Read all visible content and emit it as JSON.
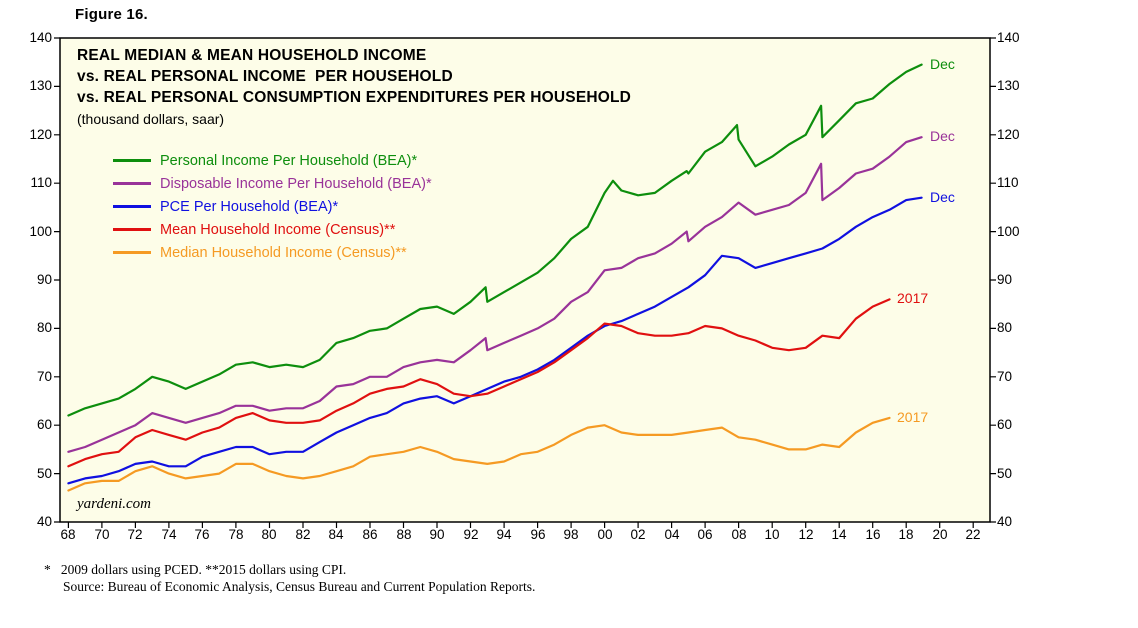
{
  "figure_label": "Figure 16.",
  "watermark": "yardeni.com",
  "footnotes": {
    "line1": "*   2009 dollars using PCED. **2015 dollars using CPI.",
    "line2": "Source: Bureau of Economic Analysis, Census Bureau and Current Population Reports."
  },
  "colors": {
    "plot_bg": "#FDFDE8",
    "frame": "#000000",
    "text": "#000000"
  },
  "chart_data": {
    "type": "line",
    "title_lines": [
      "REAL MEDIAN & MEAN HOUSEHOLD INCOME",
      "vs. REAL PERSONAL INCOME  PER HOUSEHOLD",
      "vs. REAL PERSONAL CONSUMPTION EXPENDITURES PER HOUSEHOLD"
    ],
    "subtitle": "(thousand dollars, saar)",
    "xlabel": "",
    "ylabel": "thousand dollars, saar",
    "xlim": [
      1967.5,
      2023
    ],
    "ylim": [
      40,
      140
    ],
    "grid": false,
    "legend_position": "top-left",
    "y_ticks": [
      40,
      50,
      60,
      70,
      80,
      90,
      100,
      110,
      120,
      130,
      140
    ],
    "x_tick_years": [
      1968,
      1970,
      1972,
      1974,
      1976,
      1978,
      1980,
      1982,
      1984,
      1986,
      1988,
      1990,
      1992,
      1994,
      1996,
      1998,
      2000,
      2002,
      2004,
      2006,
      2008,
      2010,
      2012,
      2014,
      2016,
      2018,
      2020,
      2022
    ],
    "x_tick_labels": [
      "68",
      "70",
      "72",
      "74",
      "76",
      "78",
      "80",
      "82",
      "84",
      "86",
      "88",
      "90",
      "92",
      "94",
      "96",
      "98",
      "00",
      "02",
      "04",
      "06",
      "08",
      "10",
      "12",
      "14",
      "16",
      "18",
      "20",
      "22"
    ],
    "series": [
      {
        "id": "personal-income",
        "name": "Personal Income Per Household (BEA)*",
        "color": "#0D8E0D",
        "end_label": "Dec",
        "points": [
          [
            1968,
            62
          ],
          [
            1969,
            63.5
          ],
          [
            1970,
            64.5
          ],
          [
            1971,
            65.5
          ],
          [
            1972,
            67.5
          ],
          [
            1973,
            70
          ],
          [
            1974,
            69
          ],
          [
            1975,
            67.5
          ],
          [
            1976,
            69
          ],
          [
            1977,
            70.5
          ],
          [
            1978,
            72.5
          ],
          [
            1979,
            73
          ],
          [
            1980,
            72
          ],
          [
            1981,
            72.5
          ],
          [
            1982,
            72
          ],
          [
            1983,
            73.5
          ],
          [
            1984,
            77
          ],
          [
            1985,
            78
          ],
          [
            1986,
            79.5
          ],
          [
            1987,
            80
          ],
          [
            1988,
            82
          ],
          [
            1989,
            84
          ],
          [
            1990,
            84.5
          ],
          [
            1991,
            83
          ],
          [
            1992,
            85.5
          ],
          [
            1992.9,
            88.5
          ],
          [
            1993,
            85.5
          ],
          [
            1994,
            87.5
          ],
          [
            1995,
            89.5
          ],
          [
            1996,
            91.5
          ],
          [
            1997,
            94.5
          ],
          [
            1998,
            98.5
          ],
          [
            1999,
            101
          ],
          [
            2000,
            108
          ],
          [
            2000.5,
            110.5
          ],
          [
            2001,
            108.5
          ],
          [
            2002,
            107.5
          ],
          [
            2003,
            108
          ],
          [
            2004,
            110.5
          ],
          [
            2004.9,
            112.5
          ],
          [
            2005,
            112
          ],
          [
            2006,
            116.5
          ],
          [
            2007,
            118.5
          ],
          [
            2007.9,
            122
          ],
          [
            2008,
            119
          ],
          [
            2009,
            113.5
          ],
          [
            2010,
            115.5
          ],
          [
            2011,
            118
          ],
          [
            2012,
            120
          ],
          [
            2012.92,
            126
          ],
          [
            2013,
            119.5
          ],
          [
            2014,
            123
          ],
          [
            2015,
            126.5
          ],
          [
            2016,
            127.5
          ],
          [
            2017,
            130.5
          ],
          [
            2018,
            133
          ],
          [
            2018.92,
            134.5
          ]
        ]
      },
      {
        "id": "disposable-income",
        "name": "Disposable Income Per Household (BEA)*",
        "color": "#993399",
        "end_label": "Dec",
        "points": [
          [
            1968,
            54.5
          ],
          [
            1969,
            55.5
          ],
          [
            1970,
            57
          ],
          [
            1971,
            58.5
          ],
          [
            1972,
            60
          ],
          [
            1973,
            62.5
          ],
          [
            1974,
            61.5
          ],
          [
            1975,
            60.5
          ],
          [
            1976,
            61.5
          ],
          [
            1977,
            62.5
          ],
          [
            1978,
            64
          ],
          [
            1979,
            64
          ],
          [
            1980,
            63
          ],
          [
            1981,
            63.5
          ],
          [
            1982,
            63.5
          ],
          [
            1983,
            65
          ],
          [
            1984,
            68
          ],
          [
            1985,
            68.5
          ],
          [
            1986,
            70
          ],
          [
            1987,
            70
          ],
          [
            1988,
            72
          ],
          [
            1989,
            73
          ],
          [
            1990,
            73.5
          ],
          [
            1991,
            73
          ],
          [
            1992,
            75.5
          ],
          [
            1992.9,
            78
          ],
          [
            1993,
            75.5
          ],
          [
            1994,
            77
          ],
          [
            1995,
            78.5
          ],
          [
            1996,
            80
          ],
          [
            1997,
            82
          ],
          [
            1998,
            85.5
          ],
          [
            1999,
            87.5
          ],
          [
            2000,
            92
          ],
          [
            2001,
            92.5
          ],
          [
            2002,
            94.5
          ],
          [
            2003,
            95.5
          ],
          [
            2004,
            97.5
          ],
          [
            2004.9,
            100
          ],
          [
            2005,
            98
          ],
          [
            2006,
            101
          ],
          [
            2007,
            103
          ],
          [
            2008,
            106
          ],
          [
            2009,
            103.5
          ],
          [
            2010,
            104.5
          ],
          [
            2011,
            105.5
          ],
          [
            2012,
            108
          ],
          [
            2012.92,
            114
          ],
          [
            2013,
            106.5
          ],
          [
            2014,
            109
          ],
          [
            2015,
            112
          ],
          [
            2016,
            113
          ],
          [
            2017,
            115.5
          ],
          [
            2018,
            118.5
          ],
          [
            2018.92,
            119.5
          ]
        ]
      },
      {
        "id": "pce",
        "name": "PCE Per Household (BEA)*",
        "color": "#1010E0",
        "end_label": "Dec",
        "points": [
          [
            1968,
            48
          ],
          [
            1969,
            49
          ],
          [
            1970,
            49.5
          ],
          [
            1971,
            50.5
          ],
          [
            1972,
            52
          ],
          [
            1973,
            52.5
          ],
          [
            1974,
            51.5
          ],
          [
            1975,
            51.5
          ],
          [
            1976,
            53.5
          ],
          [
            1977,
            54.5
          ],
          [
            1978,
            55.5
          ],
          [
            1979,
            55.5
          ],
          [
            1980,
            54
          ],
          [
            1981,
            54.5
          ],
          [
            1982,
            54.5
          ],
          [
            1983,
            56.5
          ],
          [
            1984,
            58.5
          ],
          [
            1985,
            60
          ],
          [
            1986,
            61.5
          ],
          [
            1987,
            62.5
          ],
          [
            1988,
            64.5
          ],
          [
            1989,
            65.5
          ],
          [
            1990,
            66
          ],
          [
            1991,
            64.5
          ],
          [
            1992,
            66
          ],
          [
            1993,
            67.5
          ],
          [
            1994,
            69
          ],
          [
            1995,
            70
          ],
          [
            1996,
            71.5
          ],
          [
            1997,
            73.5
          ],
          [
            1998,
            76
          ],
          [
            1999,
            78.5
          ],
          [
            2000,
            80.5
          ],
          [
            2001,
            81.5
          ],
          [
            2002,
            83
          ],
          [
            2003,
            84.5
          ],
          [
            2004,
            86.5
          ],
          [
            2005,
            88.5
          ],
          [
            2006,
            91
          ],
          [
            2007,
            95
          ],
          [
            2008,
            94.5
          ],
          [
            2009,
            92.5
          ],
          [
            2010,
            93.5
          ],
          [
            2011,
            94.5
          ],
          [
            2012,
            95.5
          ],
          [
            2013,
            96.5
          ],
          [
            2014,
            98.5
          ],
          [
            2015,
            101
          ],
          [
            2016,
            103
          ],
          [
            2017,
            104.5
          ],
          [
            2018,
            106.5
          ],
          [
            2018.92,
            107
          ]
        ]
      },
      {
        "id": "mean-income",
        "name": "Mean Household Income (Census)**",
        "color": "#E01010",
        "end_label": "2017",
        "points": [
          [
            1968,
            51.5
          ],
          [
            1969,
            53
          ],
          [
            1970,
            54
          ],
          [
            1971,
            54.5
          ],
          [
            1972,
            57.5
          ],
          [
            1973,
            59
          ],
          [
            1974,
            58
          ],
          [
            1975,
            57
          ],
          [
            1976,
            58.5
          ],
          [
            1977,
            59.5
          ],
          [
            1978,
            61.5
          ],
          [
            1979,
            62.5
          ],
          [
            1980,
            61
          ],
          [
            1981,
            60.5
          ],
          [
            1982,
            60.5
          ],
          [
            1983,
            61
          ],
          [
            1984,
            63
          ],
          [
            1985,
            64.5
          ],
          [
            1986,
            66.5
          ],
          [
            1987,
            67.5
          ],
          [
            1988,
            68
          ],
          [
            1989,
            69.5
          ],
          [
            1990,
            68.5
          ],
          [
            1991,
            66.5
          ],
          [
            1992,
            66
          ],
          [
            1993,
            66.5
          ],
          [
            1994,
            68
          ],
          [
            1995,
            69.5
          ],
          [
            1996,
            71
          ],
          [
            1997,
            73
          ],
          [
            1998,
            75.5
          ],
          [
            1999,
            78
          ],
          [
            2000,
            81
          ],
          [
            2001,
            80.5
          ],
          [
            2002,
            79
          ],
          [
            2003,
            78.5
          ],
          [
            2004,
            78.5
          ],
          [
            2005,
            79
          ],
          [
            2006,
            80.5
          ],
          [
            2007,
            80
          ],
          [
            2008,
            78.5
          ],
          [
            2009,
            77.5
          ],
          [
            2010,
            76
          ],
          [
            2011,
            75.5
          ],
          [
            2012,
            76
          ],
          [
            2013,
            78.5
          ],
          [
            2014,
            78
          ],
          [
            2015,
            82
          ],
          [
            2016,
            84.5
          ],
          [
            2017,
            86
          ]
        ]
      },
      {
        "id": "median-income",
        "name": "Median Household Income (Census)**",
        "color": "#F59A23",
        "end_label": "2017",
        "points": [
          [
            1968,
            46.5
          ],
          [
            1969,
            48
          ],
          [
            1970,
            48.5
          ],
          [
            1971,
            48.5
          ],
          [
            1972,
            50.5
          ],
          [
            1973,
            51.5
          ],
          [
            1974,
            50
          ],
          [
            1975,
            49
          ],
          [
            1976,
            49.5
          ],
          [
            1977,
            50
          ],
          [
            1978,
            52
          ],
          [
            1979,
            52
          ],
          [
            1980,
            50.5
          ],
          [
            1981,
            49.5
          ],
          [
            1982,
            49
          ],
          [
            1983,
            49.5
          ],
          [
            1984,
            50.5
          ],
          [
            1985,
            51.5
          ],
          [
            1986,
            53.5
          ],
          [
            1987,
            54
          ],
          [
            1988,
            54.5
          ],
          [
            1989,
            55.5
          ],
          [
            1990,
            54.5
          ],
          [
            1991,
            53
          ],
          [
            1992,
            52.5
          ],
          [
            1993,
            52
          ],
          [
            1994,
            52.5
          ],
          [
            1995,
            54
          ],
          [
            1996,
            54.5
          ],
          [
            1997,
            56
          ],
          [
            1998,
            58
          ],
          [
            1999,
            59.5
          ],
          [
            2000,
            60
          ],
          [
            2001,
            58.5
          ],
          [
            2002,
            58
          ],
          [
            2003,
            58
          ],
          [
            2004,
            58
          ],
          [
            2005,
            58.5
          ],
          [
            2006,
            59
          ],
          [
            2007,
            59.5
          ],
          [
            2008,
            57.5
          ],
          [
            2009,
            57
          ],
          [
            2010,
            56
          ],
          [
            2011,
            55
          ],
          [
            2012,
            55
          ],
          [
            2013,
            56
          ],
          [
            2014,
            55.5
          ],
          [
            2015,
            58.5
          ],
          [
            2016,
            60.5
          ],
          [
            2017,
            61.5
          ]
        ]
      }
    ]
  }
}
